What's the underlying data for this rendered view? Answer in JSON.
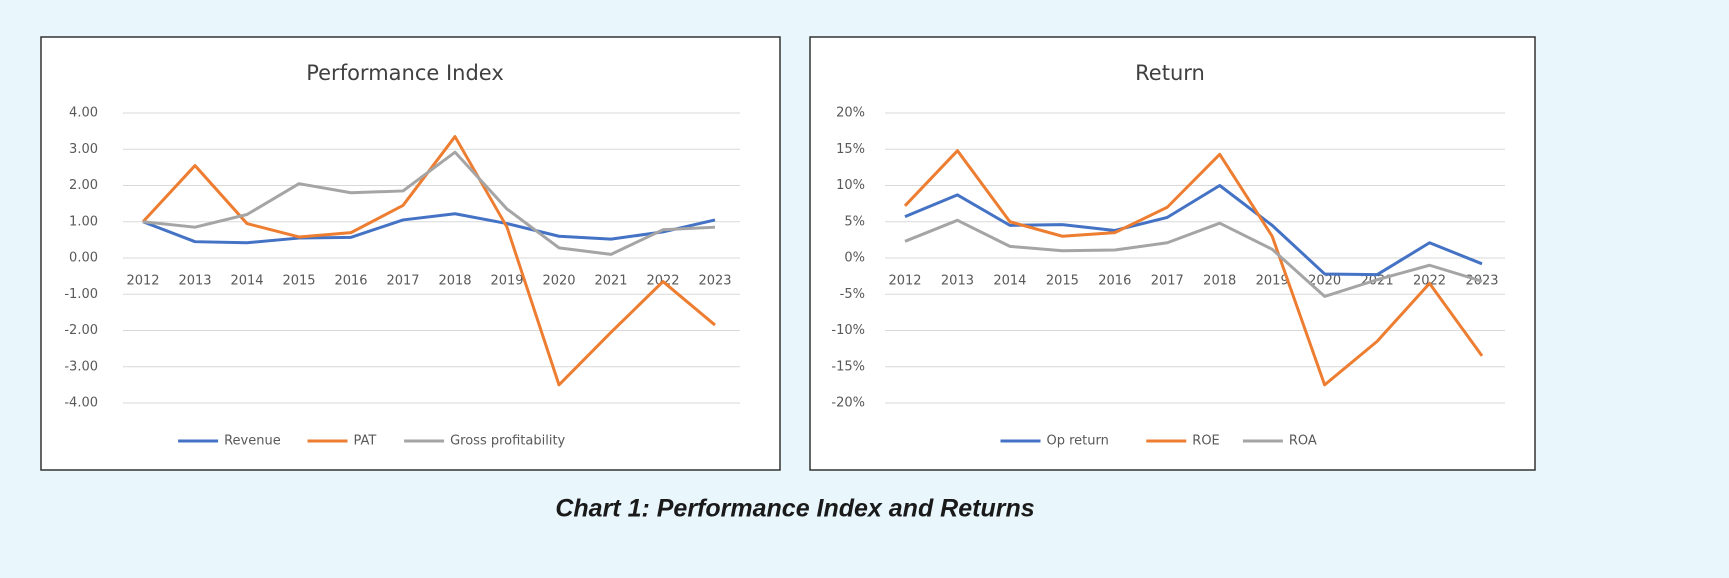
{
  "caption": "Chart 1: Performance Index and Returns",
  "chart_data": [
    {
      "type": "line",
      "title": "Performance Index",
      "categories": [
        "2012",
        "2013",
        "2014",
        "2015",
        "2016",
        "2017",
        "2018",
        "2019",
        "2020",
        "2021",
        "2022",
        "2023"
      ],
      "series": [
        {
          "name": "Revenue",
          "color": "#4472c4",
          "values": [
            1.0,
            0.45,
            0.42,
            0.55,
            0.57,
            1.05,
            1.22,
            0.95,
            0.6,
            0.52,
            0.72,
            1.05
          ]
        },
        {
          "name": "PAT",
          "color": "#ed7d31",
          "values": [
            1.0,
            2.55,
            0.95,
            0.58,
            0.7,
            1.45,
            3.35,
            0.85,
            -3.5,
            -2.05,
            -0.65,
            -1.85
          ]
        },
        {
          "name": "Gross profitability",
          "color": "#a5a5a5",
          "values": [
            1.0,
            0.85,
            1.2,
            2.05,
            1.8,
            1.85,
            2.92,
            1.35,
            0.28,
            0.1,
            0.78,
            0.85
          ]
        }
      ],
      "ylim": [
        -4,
        4
      ],
      "yticks": [
        {
          "value": 4,
          "label": "4.00"
        },
        {
          "value": 3,
          "label": "3.00"
        },
        {
          "value": 2,
          "label": "2.00"
        },
        {
          "value": 1,
          "label": "1.00"
        },
        {
          "value": 0,
          "label": "0.00"
        },
        {
          "value": -1,
          "label": "-1.00"
        },
        {
          "value": -2,
          "label": "-2.00"
        },
        {
          "value": -3,
          "label": "-3.00"
        },
        {
          "value": -4,
          "label": "-4.00"
        }
      ],
      "grid": true,
      "legend": "bottom",
      "negative_tick_color": "#ff0000"
    },
    {
      "type": "line",
      "title": "Return",
      "categories": [
        "2012",
        "2013",
        "2014",
        "2015",
        "2016",
        "2017",
        "2018",
        "2019",
        "2020",
        "2021",
        "2022",
        "2023"
      ],
      "series": [
        {
          "name": "Op return",
          "color": "#4472c4",
          "values": [
            5.7,
            8.7,
            4.5,
            4.6,
            3.8,
            5.6,
            10.0,
            4.5,
            -2.2,
            -2.3,
            2.1,
            -0.8
          ]
        },
        {
          "name": "ROE",
          "color": "#ed7d31",
          "values": [
            7.2,
            14.8,
            5.0,
            3.0,
            3.5,
            7.0,
            14.3,
            3.0,
            -17.5,
            -11.5,
            -3.5,
            -13.5
          ]
        },
        {
          "name": "ROA",
          "color": "#a5a5a5",
          "values": [
            2.3,
            5.2,
            1.6,
            1.0,
            1.1,
            2.1,
            4.8,
            1.2,
            -5.3,
            -3.0,
            -1.0,
            -3.2
          ]
        }
      ],
      "ylim": [
        -20,
        20
      ],
      "yticks": [
        {
          "value": 20,
          "label": "20%"
        },
        {
          "value": 15,
          "label": "15%"
        },
        {
          "value": 10,
          "label": "10%"
        },
        {
          "value": 5,
          "label": "5%"
        },
        {
          "value": 0,
          "label": "0%"
        },
        {
          "value": -5,
          "label": "-5%"
        },
        {
          "value": -10,
          "label": "-10%"
        },
        {
          "value": -15,
          "label": "-15%"
        },
        {
          "value": -20,
          "label": "-20%"
        }
      ],
      "grid": true,
      "legend": "bottom"
    }
  ]
}
